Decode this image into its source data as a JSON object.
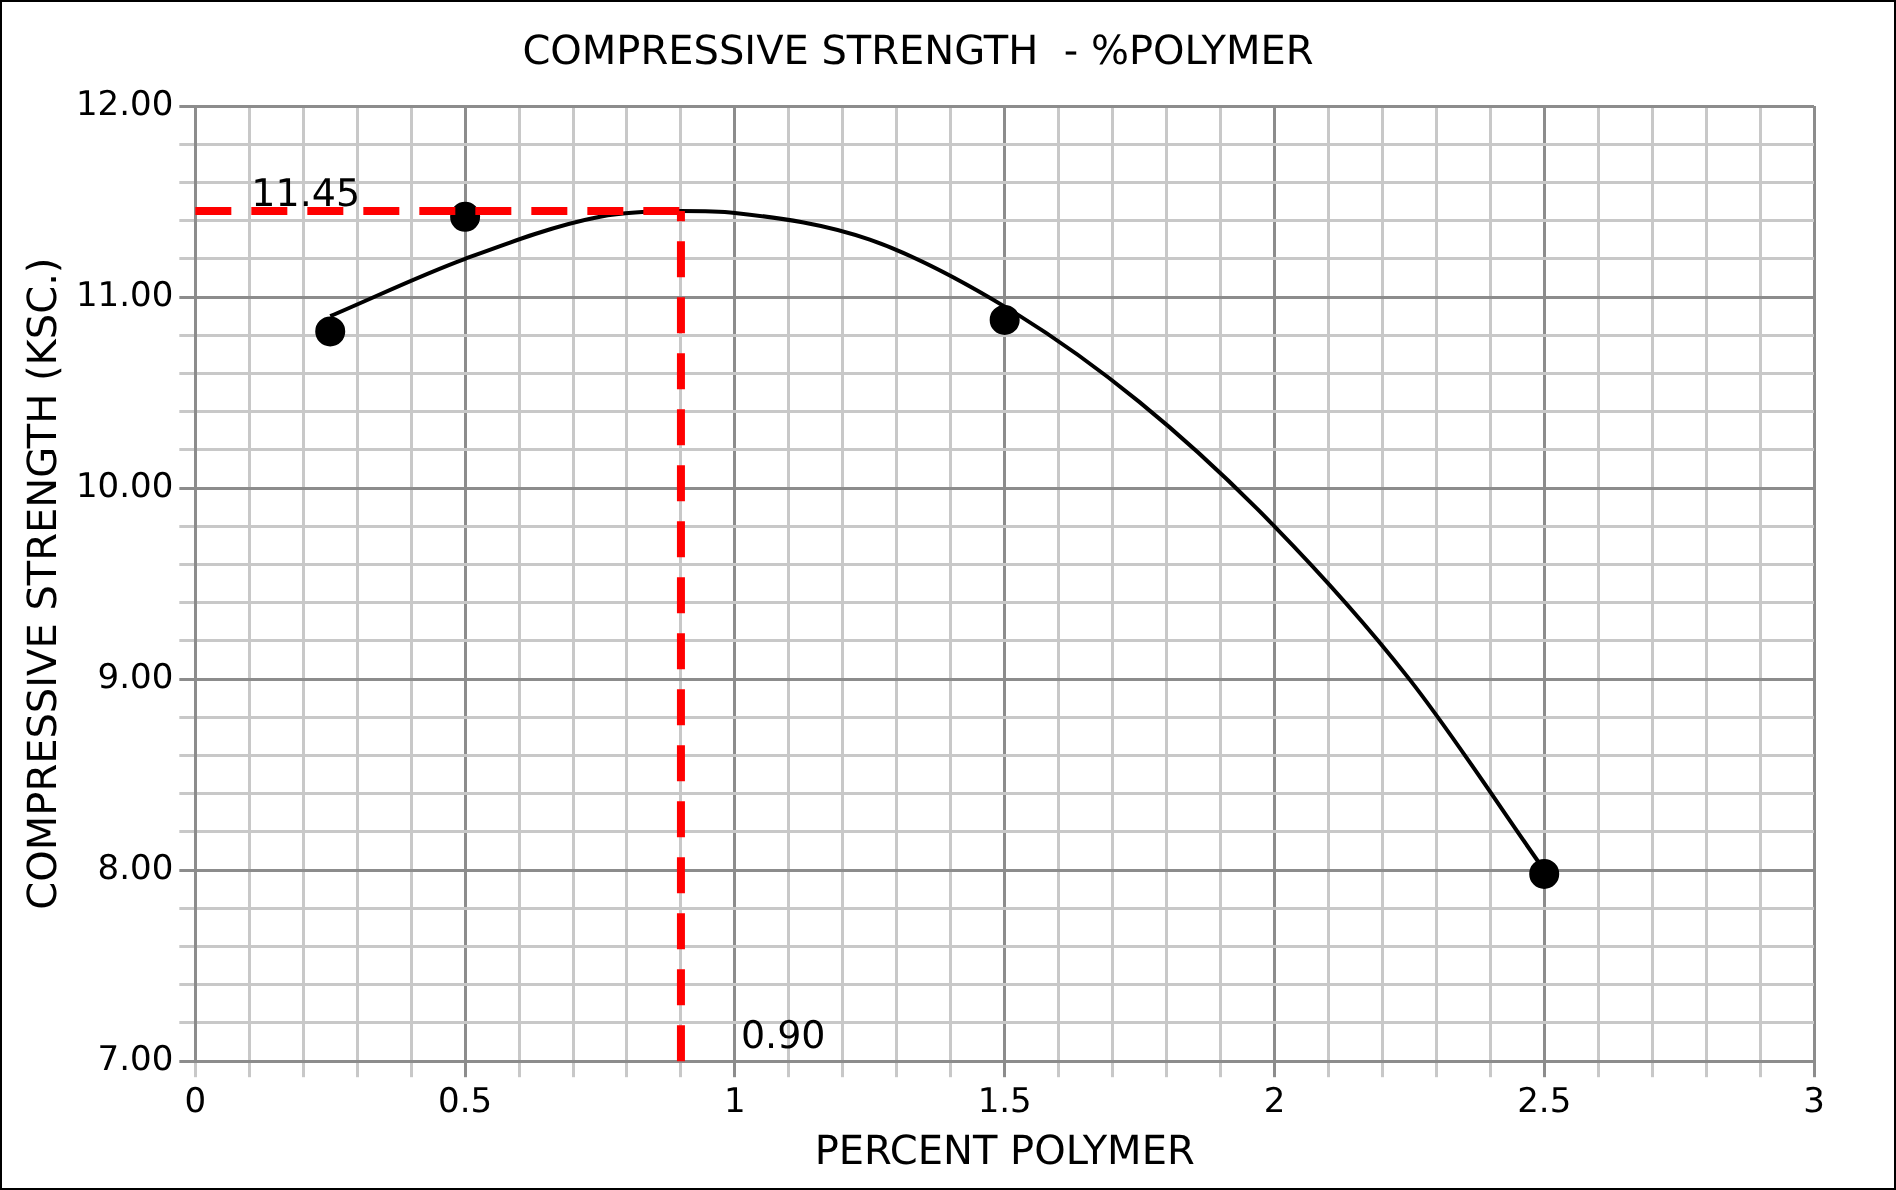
{
  "chart_data": {
    "type": "scatter",
    "title": "COMPRESSIVE STRENGTH  - %POLYMER",
    "xlabel": "PERCENT POLYMER",
    "ylabel": "COMPRESSIVE STRENGTH (KSC.)",
    "series": [
      {
        "color": "#000000",
        "marker": "circle",
        "x": [
          0.25,
          0.5,
          1.5,
          2.5
        ],
        "values": [
          10.82,
          11.42,
          10.88,
          7.98
        ]
      },
      {
        "type": "line",
        "color": "#000000",
        "marker": "none",
        "x": [
          0.25,
          0.5,
          0.75,
          0.9,
          1.0,
          1.25,
          1.5,
          1.75,
          2.0,
          2.25,
          2.5
        ],
        "values": [
          10.9,
          11.2,
          11.42,
          11.45,
          11.44,
          11.3,
          10.95,
          10.45,
          9.8,
          9.0,
          8.0
        ]
      }
    ],
    "ref_lines": [
      {
        "axis": "y",
        "value": 11.45,
        "label": "11.45",
        "color": "#ff0000",
        "line_style": "dashed"
      },
      {
        "axis": "x",
        "value": 0.9,
        "label": "0.90",
        "color": "#ff0000",
        "line_style": "dashed"
      }
    ],
    "xlim": [
      0,
      3
    ],
    "ylim": [
      7,
      12
    ],
    "xticks": [
      0,
      {
        "value": 0.1,
        "label": null
      },
      {
        "value": 0.2,
        "label": null
      },
      {
        "value": 0.3,
        "label": null
      },
      {
        "value": 0.4,
        "label": null
      },
      0.5,
      {
        "value": 0.6,
        "label": null
      },
      {
        "value": 0.7,
        "label": null
      },
      {
        "value": 0.8,
        "label": null
      },
      {
        "value": 0.9,
        "label": null
      },
      1,
      {
        "value": 1.1,
        "label": null
      },
      {
        "value": 1.2,
        "label": null
      },
      {
        "value": 1.3,
        "label": null
      },
      {
        "value": 1.4,
        "label": null
      },
      1.5,
      {
        "value": 1.6,
        "label": null
      },
      {
        "value": 1.7,
        "label": null
      },
      {
        "value": 1.8,
        "label": null
      },
      {
        "value": 1.9,
        "label": null
      },
      2,
      {
        "value": 2.1,
        "label": null
      },
      {
        "value": 2.2,
        "label": null
      },
      {
        "value": 2.3,
        "label": null
      },
      {
        "value": 2.4,
        "label": null
      },
      2.5,
      {
        "value": 2.6,
        "label": null
      },
      {
        "value": 2.7,
        "label": null
      },
      {
        "value": 2.8,
        "label": null
      },
      {
        "value": 2.9,
        "label": null
      },
      3
    ],
    "yticks": [
      {
        "value": 7,
        "label": "7.00"
      },
      {
        "value": 7.2,
        "label": null
      },
      {
        "value": 7.4,
        "label": null
      },
      {
        "value": 7.6,
        "label": null
      },
      {
        "value": 7.8,
        "label": null
      },
      {
        "value": 8,
        "label": "8.00"
      },
      {
        "value": 8.2,
        "label": null
      },
      {
        "value": 8.4,
        "label": null
      },
      {
        "value": 8.6,
        "label": null
      },
      {
        "value": 8.8,
        "label": null
      },
      {
        "value": 9,
        "label": "9.00"
      },
      {
        "value": 9.2,
        "label": null
      },
      {
        "value": 9.4,
        "label": null
      },
      {
        "value": 9.6,
        "label": null
      },
      {
        "value": 9.8,
        "label": null
      },
      {
        "value": 10,
        "label": "10.00"
      },
      {
        "value": 10.2,
        "label": null
      },
      {
        "value": 10.4,
        "label": null
      },
      {
        "value": 10.6,
        "label": null
      },
      {
        "value": 10.8,
        "label": null
      },
      {
        "value": 11,
        "label": "11.00"
      },
      {
        "value": 11.2,
        "label": null
      },
      {
        "value": 11.4,
        "label": null
      },
      {
        "value": 11.6,
        "label": null
      },
      {
        "value": 11.8,
        "label": null
      },
      {
        "value": 12,
        "label": "12.00"
      }
    ],
    "grid": true,
    "legend": false
  }
}
